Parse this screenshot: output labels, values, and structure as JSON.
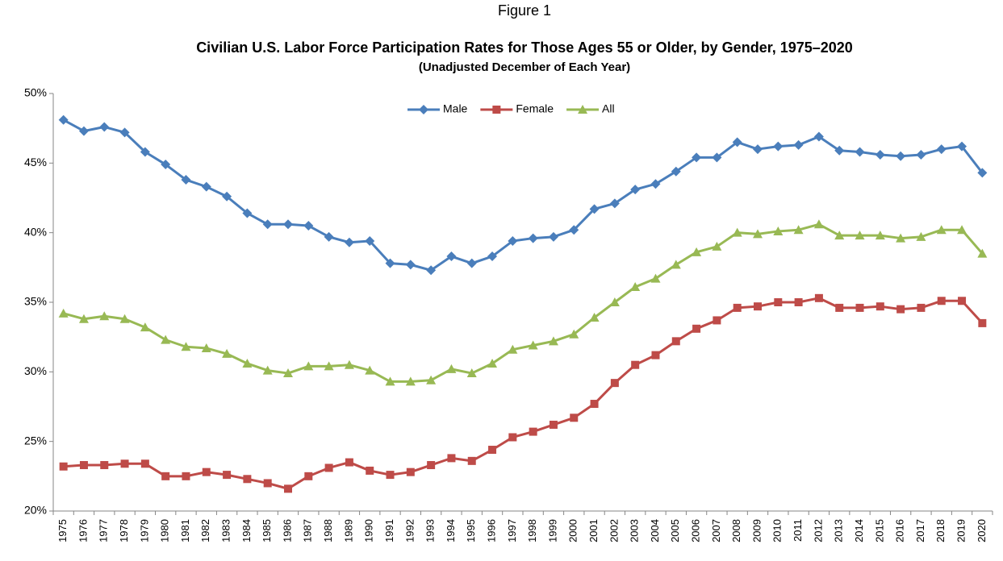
{
  "chart_data": {
    "type": "line",
    "title_prefix": "Figure 1",
    "title": "Civilian U.S. Labor Force Participation Rates for Those Ages 55 or Older, by Gender, 1975–2020",
    "subtitle": "(Unadjusted December of Each Year)",
    "categories": [
      "1975",
      "1976",
      "1977",
      "1978",
      "1979",
      "1980",
      "1981",
      "1982",
      "1983",
      "1984",
      "1985",
      "1986",
      "1987",
      "1988",
      "1989",
      "1990",
      "1991",
      "1992",
      "1993",
      "1994",
      "1995",
      "1996",
      "1997",
      "1998",
      "1999",
      "2000",
      "2001",
      "2002",
      "2003",
      "2004",
      "2005",
      "2006",
      "2007",
      "2008",
      "2009",
      "2010",
      "2011",
      "2012",
      "2013",
      "2014",
      "2015",
      "2016",
      "2017",
      "2018",
      "2019",
      "2020"
    ],
    "series": [
      {
        "name": "Male",
        "color": "#4a7ebb",
        "marker": "diamond",
        "values": [
          48.1,
          47.3,
          47.6,
          47.2,
          45.8,
          44.9,
          43.8,
          43.3,
          42.6,
          41.4,
          40.6,
          40.6,
          40.5,
          39.7,
          39.3,
          39.4,
          37.8,
          37.7,
          37.3,
          38.3,
          37.8,
          38.3,
          39.4,
          39.6,
          39.7,
          40.2,
          41.7,
          42.1,
          43.1,
          43.5,
          44.4,
          45.4,
          45.4,
          46.5,
          46.0,
          46.2,
          46.3,
          46.9,
          45.9,
          45.8,
          45.6,
          45.5,
          45.6,
          46.0,
          46.2,
          44.3
        ]
      },
      {
        "name": "Female",
        "color": "#be4b48",
        "marker": "square",
        "values": [
          23.2,
          23.3,
          23.3,
          23.4,
          23.4,
          22.5,
          22.5,
          22.8,
          22.6,
          22.3,
          22.0,
          21.6,
          22.5,
          23.1,
          23.5,
          22.9,
          22.6,
          22.8,
          23.3,
          23.8,
          23.6,
          24.4,
          25.3,
          25.7,
          26.2,
          26.7,
          27.7,
          29.2,
          30.5,
          31.2,
          32.2,
          33.1,
          33.7,
          34.6,
          34.7,
          35.0,
          35.0,
          35.3,
          34.6,
          34.6,
          34.7,
          34.5,
          34.6,
          35.1,
          35.1,
          33.5
        ]
      },
      {
        "name": "All",
        "color": "#98b954",
        "marker": "triangle",
        "values": [
          34.2,
          33.8,
          34.0,
          33.8,
          33.2,
          32.3,
          31.8,
          31.7,
          31.3,
          30.6,
          30.1,
          29.9,
          30.4,
          30.4,
          30.5,
          30.1,
          29.3,
          29.3,
          29.4,
          30.2,
          29.9,
          30.6,
          31.6,
          31.9,
          32.2,
          32.7,
          33.9,
          35.0,
          36.1,
          36.7,
          37.7,
          38.6,
          39.0,
          40.0,
          39.9,
          40.1,
          40.2,
          40.6,
          39.8,
          39.8,
          39.8,
          39.6,
          39.7,
          40.2,
          40.2,
          38.5
        ]
      }
    ],
    "ylim": [
      20,
      50
    ],
    "yticks": [
      {
        "value": 20,
        "label": "20%"
      },
      {
        "value": 25,
        "label": "25%"
      },
      {
        "value": 30,
        "label": "30%"
      },
      {
        "value": 35,
        "label": "35%"
      },
      {
        "value": 40,
        "label": "40%"
      },
      {
        "value": 45,
        "label": "45%"
      },
      {
        "value": 50,
        "label": "50%"
      }
    ],
    "grid": false,
    "legend": "top"
  }
}
